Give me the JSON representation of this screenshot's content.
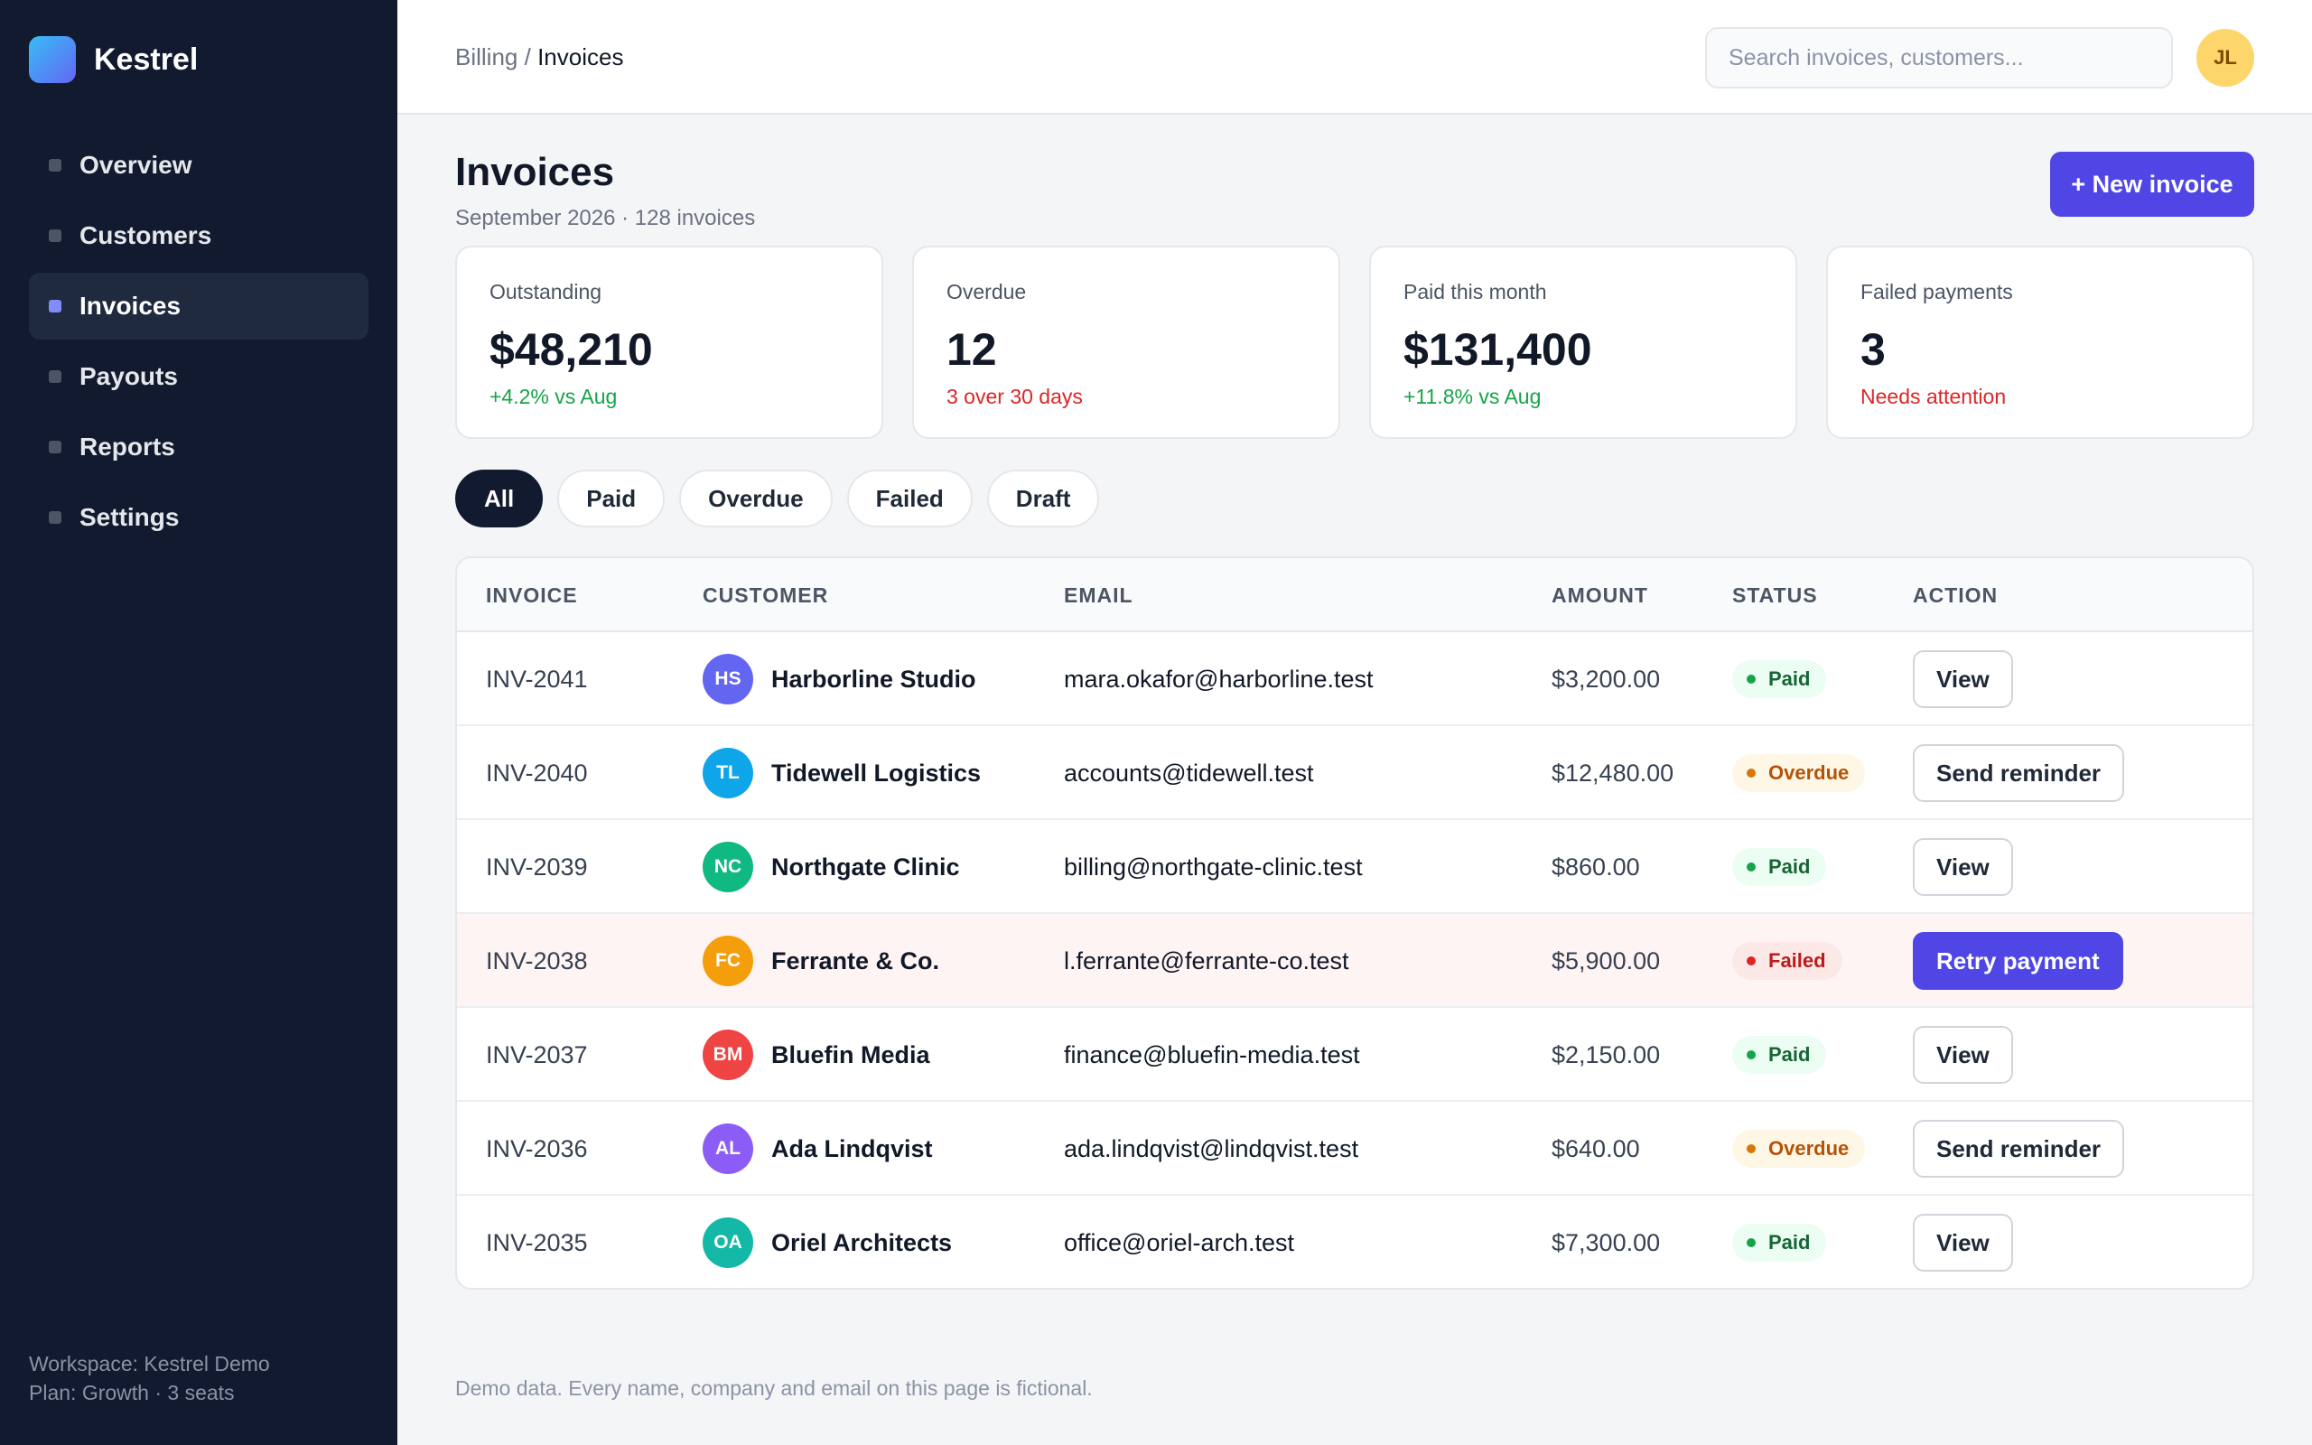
{
  "app": {
    "name": "Kestrel"
  },
  "sidebar": {
    "items": [
      {
        "label": "Overview",
        "active": false
      },
      {
        "label": "Customers",
        "active": false
      },
      {
        "label": "Invoices",
        "active": true
      },
      {
        "label": "Payouts",
        "active": false
      },
      {
        "label": "Reports",
        "active": false
      },
      {
        "label": "Settings",
        "active": false
      }
    ],
    "footer": {
      "workspace": "Workspace: Kestrel Demo",
      "plan": "Plan: Growth · 3 seats"
    }
  },
  "topbar": {
    "breadcrumb": {
      "parent": "Billing",
      "separator": "/",
      "current": "Invoices"
    },
    "search": {
      "placeholder": "Search invoices, customers...",
      "value": ""
    },
    "user_initials": "JL"
  },
  "page": {
    "title": "Invoices",
    "subtitle": "September 2026 · 128 invoices",
    "new_button": "+ New invoice"
  },
  "stats": [
    {
      "label": "Outstanding",
      "value": "$48,210",
      "note": "+4.2% vs Aug",
      "tone": "green"
    },
    {
      "label": "Overdue",
      "value": "12",
      "note": "3 over 30 days",
      "tone": "red"
    },
    {
      "label": "Paid this month",
      "value": "$131,400",
      "note": "+11.8% vs Aug",
      "tone": "green"
    },
    {
      "label": "Failed payments",
      "value": "3",
      "note": "Needs attention",
      "tone": "red"
    }
  ],
  "filters": [
    {
      "label": "All",
      "active": true
    },
    {
      "label": "Paid",
      "active": false
    },
    {
      "label": "Overdue",
      "active": false
    },
    {
      "label": "Failed",
      "active": false
    },
    {
      "label": "Draft",
      "active": false
    }
  ],
  "table": {
    "columns": [
      "INVOICE",
      "CUSTOMER",
      "EMAIL",
      "AMOUNT",
      "STATUS",
      "ACTION"
    ],
    "rows": [
      {
        "invoice": "INV-2041",
        "initials": "HS",
        "avatar_color": "#6366f1",
        "customer": "Harborline Studio",
        "email": "mara.okafor@harborline.test",
        "amount": "$3,200.00",
        "status": "Paid",
        "status_kind": "paid",
        "action": "View",
        "action_kind": "default"
      },
      {
        "invoice": "INV-2040",
        "initials": "TL",
        "avatar_color": "#0ea5e9",
        "customer": "Tidewell Logistics",
        "email": "accounts@tidewell.test",
        "amount": "$12,480.00",
        "status": "Overdue",
        "status_kind": "overdue",
        "action": "Send reminder",
        "action_kind": "default"
      },
      {
        "invoice": "INV-2039",
        "initials": "NC",
        "avatar_color": "#10b981",
        "customer": "Northgate Clinic",
        "email": "billing@northgate-clinic.test",
        "amount": "$860.00",
        "status": "Paid",
        "status_kind": "paid",
        "action": "View",
        "action_kind": "default"
      },
      {
        "invoice": "INV-2038",
        "initials": "FC",
        "avatar_color": "#f59e0b",
        "customer": "Ferrante & Co.",
        "email": "l.ferrante@ferrante-co.test",
        "amount": "$5,900.00",
        "status": "Failed",
        "status_kind": "failed",
        "action": "Retry payment",
        "action_kind": "primary"
      },
      {
        "invoice": "INV-2037",
        "initials": "BM",
        "avatar_color": "#ef4444",
        "customer": "Bluefin Media",
        "email": "finance@bluefin-media.test",
        "amount": "$2,150.00",
        "status": "Paid",
        "status_kind": "paid",
        "action": "View",
        "action_kind": "default"
      },
      {
        "invoice": "INV-2036",
        "initials": "AL",
        "avatar_color": "#8b5cf6",
        "customer": "Ada Lindqvist",
        "email": "ada.lindqvist@lindqvist.test",
        "amount": "$640.00",
        "status": "Overdue",
        "status_kind": "overdue",
        "action": "Send reminder",
        "action_kind": "default"
      },
      {
        "invoice": "INV-2035",
        "initials": "OA",
        "avatar_color": "#14b8a6",
        "customer": "Oriel Architects",
        "email": "office@oriel-arch.test",
        "amount": "$7,300.00",
        "status": "Paid",
        "status_kind": "paid",
        "action": "View",
        "action_kind": "default"
      }
    ]
  },
  "footer_note": "Demo data. Every name, company and email on this page is fictional.",
  "colors": {
    "accent": "#4f46e5",
    "sidebar_bg": "#111a2e",
    "paid": "#16a34a",
    "overdue": "#d97706",
    "failed": "#dc2626"
  }
}
